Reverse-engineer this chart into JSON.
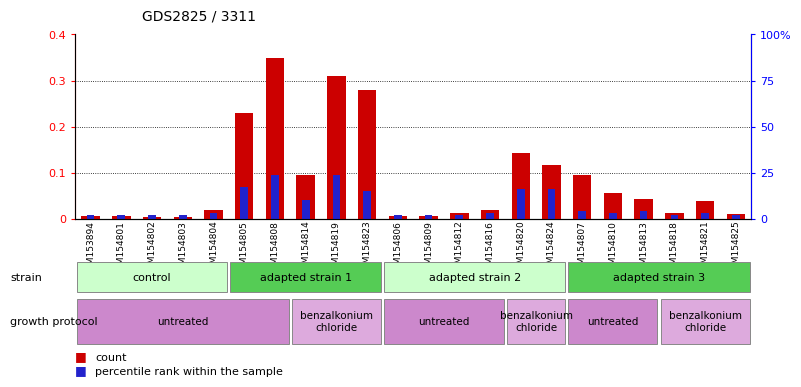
{
  "title": "GDS2825 / 3311",
  "samples": [
    "GSM153894",
    "GSM154801",
    "GSM154802",
    "GSM154803",
    "GSM154804",
    "GSM154805",
    "GSM154808",
    "GSM154814",
    "GSM154819",
    "GSM154823",
    "GSM154806",
    "GSM154809",
    "GSM154812",
    "GSM154816",
    "GSM154820",
    "GSM154824",
    "GSM154807",
    "GSM154810",
    "GSM154813",
    "GSM154818",
    "GSM154821",
    "GSM154825"
  ],
  "count_values": [
    0.005,
    0.005,
    0.003,
    0.004,
    0.018,
    0.23,
    0.348,
    0.095,
    0.31,
    0.28,
    0.005,
    0.005,
    0.013,
    0.018,
    0.143,
    0.117,
    0.095,
    0.056,
    0.044,
    0.013,
    0.038,
    0.01
  ],
  "percentile_values": [
    2,
    2,
    2,
    2,
    3,
    17,
    24,
    10,
    24,
    15,
    2,
    2,
    2,
    3,
    16,
    16,
    4,
    3,
    4,
    2,
    3,
    2
  ],
  "ylim_left": [
    0,
    0.4
  ],
  "ylim_right": [
    0,
    100
  ],
  "yticks_left": [
    0.0,
    0.1,
    0.2,
    0.3,
    0.4
  ],
  "ytick_labels_left": [
    "0",
    "0.1",
    "0.2",
    "0.3",
    "0.4"
  ],
  "yticks_right": [
    0,
    25,
    50,
    75,
    100
  ],
  "ytick_labels_right": [
    "0",
    "25",
    "50",
    "75",
    "100%"
  ],
  "count_color": "#cc0000",
  "percentile_color": "#2222cc",
  "strain_groups": [
    {
      "label": "control",
      "start": 0,
      "end": 5,
      "color": "#ccffcc"
    },
    {
      "label": "adapted strain 1",
      "start": 5,
      "end": 10,
      "color": "#55cc55"
    },
    {
      "label": "adapted strain 2",
      "start": 10,
      "end": 16,
      "color": "#ccffcc"
    },
    {
      "label": "adapted strain 3",
      "start": 16,
      "end": 22,
      "color": "#55cc55"
    }
  ],
  "protocol_groups": [
    {
      "label": "untreated",
      "start": 0,
      "end": 7,
      "color": "#cc88cc"
    },
    {
      "label": "benzalkonium\nchloride",
      "start": 7,
      "end": 10,
      "color": "#ddaadd"
    },
    {
      "label": "untreated",
      "start": 10,
      "end": 14,
      "color": "#cc88cc"
    },
    {
      "label": "benzalkonium\nchloride",
      "start": 14,
      "end": 16,
      "color": "#ddaadd"
    },
    {
      "label": "untreated",
      "start": 16,
      "end": 19,
      "color": "#cc88cc"
    },
    {
      "label": "benzalkonium\nchloride",
      "start": 19,
      "end": 22,
      "color": "#ddaadd"
    }
  ],
  "legend_count_label": "count",
  "legend_percentile_label": "percentile rank within the sample",
  "strain_label": "strain",
  "protocol_label": "growth protocol"
}
